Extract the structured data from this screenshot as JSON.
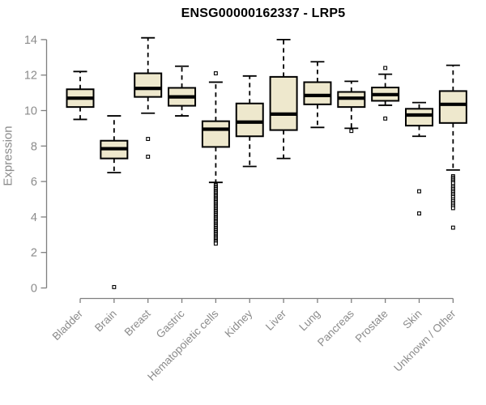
{
  "chart_data": {
    "type": "boxplot",
    "title": "ENSG00000162337 - LRP5",
    "xlabel": "",
    "ylabel": "Expression",
    "ylim": [
      0,
      14
    ],
    "yticks": [
      0,
      2,
      4,
      6,
      8,
      10,
      12,
      14
    ],
    "grid": false,
    "legend": "none",
    "colors": {
      "box_fill": "#EEE8CD",
      "box_stroke": "#000000",
      "axis": "#7F7F7F",
      "tick_labels": "#8B8B8B",
      "title": "#000000",
      "outlier_fill": "#FFFFFF"
    },
    "categories": [
      "Bladder",
      "Brain",
      "Breast",
      "Gastric",
      "Hematopoietic cells",
      "Kidney",
      "Liver",
      "Lung",
      "Pancreas",
      "Prostate",
      "Skin",
      "Unknown / Other"
    ],
    "series": [
      {
        "category": "Bladder",
        "whisker_low": 9.5,
        "q1": 10.2,
        "median": 10.7,
        "q3": 11.2,
        "whisker_high": 12.2,
        "outliers": []
      },
      {
        "category": "Brain",
        "whisker_low": 6.5,
        "q1": 7.3,
        "median": 7.85,
        "q3": 8.3,
        "whisker_high": 9.7,
        "outliers": [
          0.05
        ]
      },
      {
        "category": "Breast",
        "whisker_low": 9.85,
        "q1": 10.77,
        "median": 11.25,
        "q3": 12.1,
        "whisker_high": 14.1,
        "outliers": [
          8.4,
          7.4
        ]
      },
      {
        "category": "Gastric",
        "whisker_low": 9.7,
        "q1": 10.27,
        "median": 10.77,
        "q3": 11.28,
        "whisker_high": 12.5,
        "outliers": []
      },
      {
        "category": "Hematopoietic cells",
        "whisker_low": 5.95,
        "q1": 7.95,
        "median": 8.95,
        "q3": 9.4,
        "whisker_high": 11.6,
        "outliers": [
          12.1,
          5.8,
          5.72,
          5.65,
          5.58,
          5.5,
          5.43,
          5.36,
          5.28,
          5.21,
          5.14,
          5.06,
          5.0,
          4.92,
          4.85,
          4.78,
          4.7,
          4.63,
          4.56,
          4.48,
          4.41,
          4.34,
          4.26,
          4.19,
          4.12,
          4.04,
          3.97,
          3.9,
          3.82,
          3.75,
          3.68,
          3.6,
          3.53,
          3.46,
          3.38,
          3.31,
          3.24,
          3.16,
          3.09,
          3.02,
          2.94,
          2.87,
          2.8,
          2.72,
          2.65,
          2.58,
          2.5
        ]
      },
      {
        "category": "Kidney",
        "whisker_low": 6.85,
        "q1": 8.55,
        "median": 9.35,
        "q3": 10.4,
        "whisker_high": 11.95,
        "outliers": []
      },
      {
        "category": "Liver",
        "whisker_low": 7.3,
        "q1": 8.9,
        "median": 9.8,
        "q3": 11.9,
        "whisker_high": 14.0,
        "outliers": []
      },
      {
        "category": "Lung",
        "whisker_low": 9.05,
        "q1": 10.35,
        "median": 10.85,
        "q3": 11.6,
        "whisker_high": 12.75,
        "outliers": []
      },
      {
        "category": "Pancreas",
        "whisker_low": 9.0,
        "q1": 10.2,
        "median": 10.7,
        "q3": 11.05,
        "whisker_high": 11.65,
        "outliers": [
          8.85
        ]
      },
      {
        "category": "Prostate",
        "whisker_low": 10.3,
        "q1": 10.55,
        "median": 10.9,
        "q3": 11.3,
        "whisker_high": 12.05,
        "outliers": [
          12.4,
          9.55
        ]
      },
      {
        "category": "Skin",
        "whisker_low": 8.55,
        "q1": 9.15,
        "median": 9.75,
        "q3": 10.1,
        "whisker_high": 10.45,
        "outliers": [
          5.45,
          4.2
        ]
      },
      {
        "category": "Unknown / Other",
        "whisker_low": 6.65,
        "q1": 9.3,
        "median": 10.35,
        "q3": 11.1,
        "whisker_high": 12.55,
        "outliers": [
          6.3,
          6.22,
          6.14,
          6.06,
          5.98,
          5.9,
          5.75,
          5.66,
          5.57,
          5.48,
          5.39,
          5.3,
          5.21,
          5.12,
          5.0,
          4.9,
          4.8,
          4.7,
          4.6,
          4.5,
          3.4
        ]
      }
    ]
  }
}
